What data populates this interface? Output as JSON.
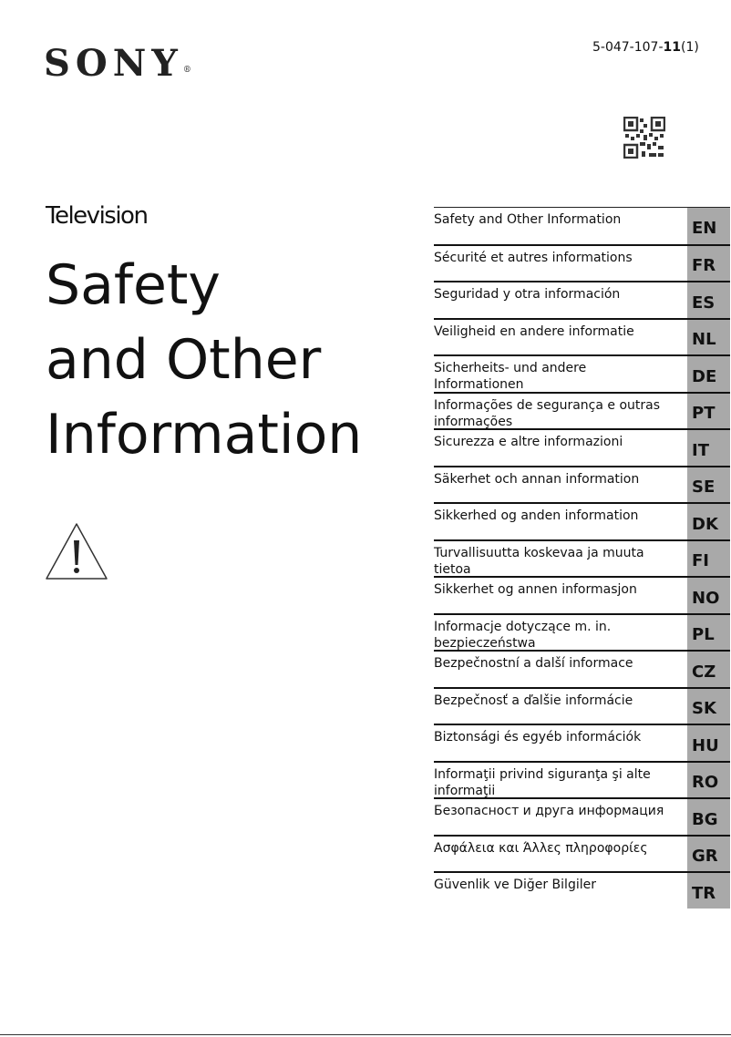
{
  "brand": "SONY",
  "part_number": {
    "prefix": "5-047-107-",
    "bold": "11",
    "suffix": "(1)"
  },
  "product": "Television",
  "title_lines": [
    "Safety",
    "and Other",
    "Information"
  ],
  "languages": [
    {
      "label": "Safety and Other Information",
      "code": "EN"
    },
    {
      "label": "Sécurité et autres informations",
      "code": "FR"
    },
    {
      "label": "Seguridad y otra información",
      "code": "ES"
    },
    {
      "label": "Veiligheid en andere informatie",
      "code": "NL"
    },
    {
      "label": "Sicherheits- und andere Informationen",
      "code": "DE"
    },
    {
      "label": "Informações de segurança e outras informações",
      "code": "PT"
    },
    {
      "label": "Sicurezza e altre informazioni",
      "code": "IT"
    },
    {
      "label": "Säkerhet och annan information",
      "code": "SE"
    },
    {
      "label": "Sikkerhed og anden information",
      "code": "DK"
    },
    {
      "label": "Turvallisuutta koskevaa ja muuta tietoa",
      "code": "FI"
    },
    {
      "label": "Sikkerhet og annen informasjon",
      "code": "NO"
    },
    {
      "label": "Informacje dotyczące m. in. bezpieczeństwa",
      "code": "PL"
    },
    {
      "label": "Bezpečnostní a další informace",
      "code": "CZ"
    },
    {
      "label": "Bezpečnosť a ďalšie informácie",
      "code": "SK"
    },
    {
      "label": "Biztonsági és egyéb információk",
      "code": "HU"
    },
    {
      "label": "Informaţii privind siguranţa şi alte informaţii",
      "code": "RO"
    },
    {
      "label": "Безопасност и друга информация",
      "code": "BG"
    },
    {
      "label": "Ασφάλεια και Άλλες πληροφορίες",
      "code": "GR"
    },
    {
      "label": "Güvenlik ve Diğer Bilgiler",
      "code": "TR"
    }
  ],
  "colors": {
    "code_bg": "#a9a9a9"
  }
}
